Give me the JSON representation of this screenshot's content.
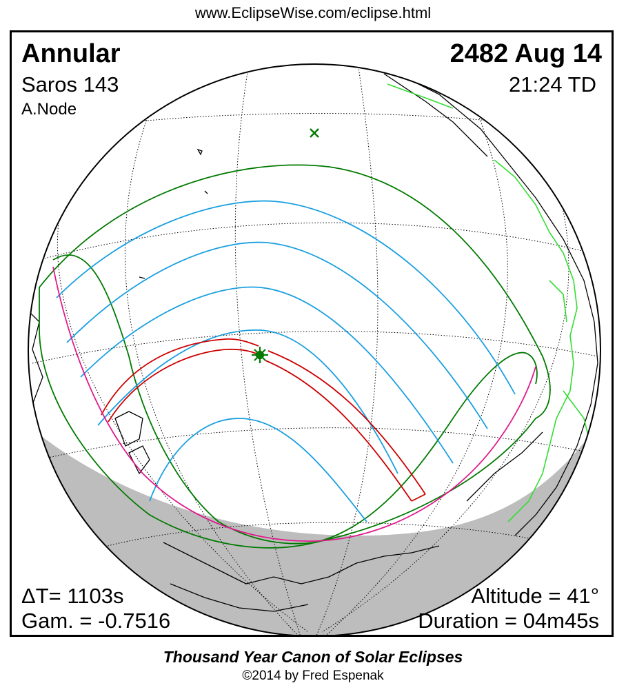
{
  "header": {
    "url": "www.EclipseWise.com/eclipse.html"
  },
  "eclipse": {
    "type": "Annular",
    "date": "2482 Aug 14",
    "saros": "Saros 143",
    "time": "21:24 TD",
    "node": "A.Node",
    "delta_t": "ΔT=   1103s",
    "gamma": "Gam. = -0.7516",
    "altitude": "Altitude = 41°",
    "duration": "Duration = 04m45s"
  },
  "map": {
    "colors": {
      "central_path": "#cc0000",
      "penumbra_limits": "#007a00",
      "partial_lines": "#1a9fe0",
      "rise_set": "#e0198c",
      "coastline": "#000000",
      "political": "#33dd33",
      "night": "#bdbdbd"
    },
    "markers": {
      "greatest_eclipse": "sun-star-icon",
      "sub_solar_point": "cross-icon"
    }
  },
  "footer": {
    "title": "Thousand Year Canon of Solar Eclipses",
    "copyright": "©2014 by Fred Espenak"
  }
}
